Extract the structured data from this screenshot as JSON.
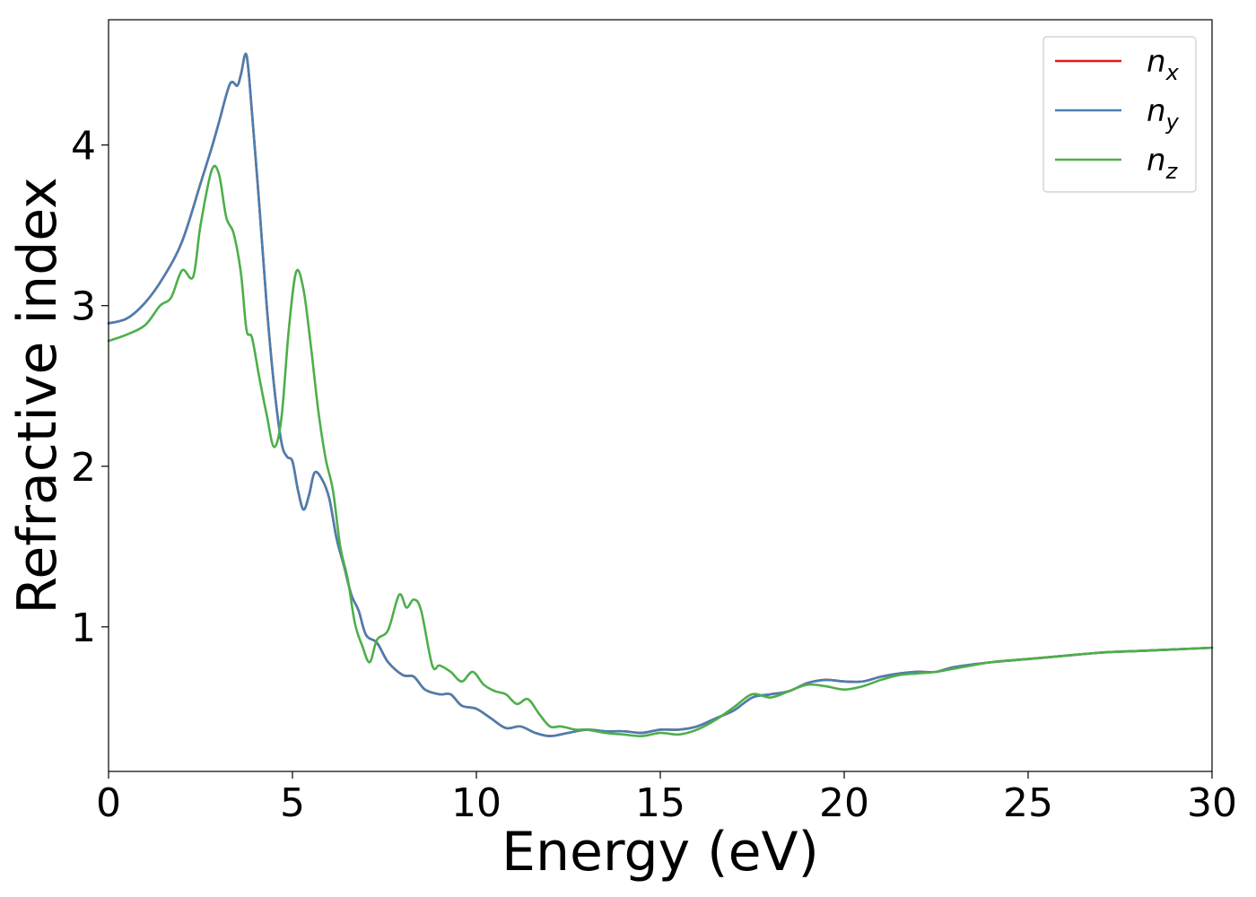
{
  "chart_data": {
    "type": "line",
    "title": "",
    "xlabel": "Energy (eV)",
    "ylabel": "Refractive index",
    "xlim": [
      0,
      30
    ],
    "ylim": [
      0.1,
      4.78
    ],
    "xticks": [
      0,
      5,
      10,
      15,
      20,
      25,
      30
    ],
    "xtick_labels": [
      "0",
      "5",
      "10",
      "15",
      "20",
      "25",
      "30"
    ],
    "yticks": [
      1,
      2,
      3,
      4
    ],
    "ytick_labels": [
      "1",
      "2",
      "3",
      "4"
    ],
    "grid": false,
    "legend_position": "top-right",
    "series": [
      {
        "name": "n_x",
        "label_main": "n",
        "label_sub": "x",
        "color": "#e41a1c",
        "x": [
          0,
          0.5,
          1.0,
          1.5,
          2.0,
          2.5,
          2.8,
          3.0,
          3.3,
          3.5,
          3.6,
          3.75,
          3.9,
          4.1,
          4.3,
          4.5,
          4.7,
          4.85,
          5.0,
          5.15,
          5.3,
          5.45,
          5.6,
          5.8,
          6.0,
          6.2,
          6.4,
          6.6,
          6.8,
          7.0,
          7.3,
          7.6,
          8.0,
          8.3,
          8.6,
          9.0,
          9.3,
          9.6,
          10.0,
          10.4,
          10.8,
          11.2,
          11.6,
          12.0,
          12.5,
          13.0,
          13.5,
          14.0,
          14.5,
          15.0,
          15.5,
          16.0,
          16.5,
          17.0,
          17.5,
          18.0,
          18.5,
          19.0,
          19.5,
          20.0,
          20.5,
          21.0,
          21.5,
          22.0,
          22.5,
          23.0,
          24.0,
          25.0,
          26.0,
          27.0,
          28.0,
          29.0,
          30.0
        ],
        "values": [
          2.89,
          2.92,
          3.02,
          3.18,
          3.4,
          3.76,
          3.98,
          4.14,
          4.38,
          4.37,
          4.44,
          4.56,
          4.2,
          3.62,
          3.0,
          2.5,
          2.15,
          2.06,
          2.03,
          1.85,
          1.73,
          1.82,
          1.96,
          1.92,
          1.8,
          1.55,
          1.38,
          1.2,
          1.1,
          0.95,
          0.9,
          0.78,
          0.7,
          0.69,
          0.61,
          0.58,
          0.58,
          0.51,
          0.49,
          0.43,
          0.37,
          0.38,
          0.34,
          0.32,
          0.34,
          0.36,
          0.35,
          0.35,
          0.34,
          0.36,
          0.36,
          0.38,
          0.43,
          0.48,
          0.56,
          0.58,
          0.6,
          0.65,
          0.67,
          0.66,
          0.66,
          0.69,
          0.71,
          0.72,
          0.72,
          0.75,
          0.78,
          0.8,
          0.82,
          0.84,
          0.85,
          0.86,
          0.87
        ]
      },
      {
        "name": "n_y",
        "label_main": "n",
        "label_sub": "y",
        "color": "#4a7fb0",
        "x": [
          0,
          0.5,
          1.0,
          1.5,
          2.0,
          2.5,
          2.8,
          3.0,
          3.3,
          3.5,
          3.6,
          3.75,
          3.9,
          4.1,
          4.3,
          4.5,
          4.7,
          4.85,
          5.0,
          5.15,
          5.3,
          5.45,
          5.6,
          5.8,
          6.0,
          6.2,
          6.4,
          6.6,
          6.8,
          7.0,
          7.3,
          7.6,
          8.0,
          8.3,
          8.6,
          9.0,
          9.3,
          9.6,
          10.0,
          10.4,
          10.8,
          11.2,
          11.6,
          12.0,
          12.5,
          13.0,
          13.5,
          14.0,
          14.5,
          15.0,
          15.5,
          16.0,
          16.5,
          17.0,
          17.5,
          18.0,
          18.5,
          19.0,
          19.5,
          20.0,
          20.5,
          21.0,
          21.5,
          22.0,
          22.5,
          23.0,
          24.0,
          25.0,
          26.0,
          27.0,
          28.0,
          29.0,
          30.0
        ],
        "values": [
          2.89,
          2.92,
          3.02,
          3.18,
          3.4,
          3.76,
          3.98,
          4.14,
          4.38,
          4.37,
          4.44,
          4.56,
          4.2,
          3.62,
          3.0,
          2.5,
          2.15,
          2.06,
          2.03,
          1.85,
          1.73,
          1.82,
          1.96,
          1.92,
          1.8,
          1.55,
          1.38,
          1.2,
          1.1,
          0.95,
          0.9,
          0.78,
          0.7,
          0.69,
          0.61,
          0.58,
          0.58,
          0.51,
          0.49,
          0.43,
          0.37,
          0.38,
          0.34,
          0.32,
          0.34,
          0.36,
          0.35,
          0.35,
          0.34,
          0.36,
          0.36,
          0.38,
          0.43,
          0.48,
          0.56,
          0.58,
          0.6,
          0.65,
          0.67,
          0.66,
          0.66,
          0.69,
          0.71,
          0.72,
          0.72,
          0.75,
          0.78,
          0.8,
          0.82,
          0.84,
          0.85,
          0.86,
          0.87
        ]
      },
      {
        "name": "n_z",
        "label_main": "n",
        "label_sub": "z",
        "color": "#4daf4a",
        "x": [
          0,
          0.5,
          1.0,
          1.4,
          1.7,
          2.0,
          2.3,
          2.5,
          2.8,
          3.0,
          3.2,
          3.4,
          3.6,
          3.75,
          3.9,
          4.1,
          4.3,
          4.5,
          4.7,
          4.9,
          5.1,
          5.3,
          5.5,
          5.7,
          5.9,
          6.1,
          6.3,
          6.5,
          6.7,
          6.9,
          7.1,
          7.3,
          7.6,
          7.9,
          8.1,
          8.3,
          8.5,
          8.8,
          9.0,
          9.3,
          9.6,
          9.9,
          10.2,
          10.5,
          10.8,
          11.1,
          11.4,
          11.7,
          12.0,
          12.3,
          12.7,
          13.0,
          13.5,
          14.0,
          14.5,
          15.0,
          15.5,
          16.0,
          16.5,
          17.0,
          17.5,
          18.0,
          18.5,
          19.0,
          19.5,
          20.0,
          20.5,
          21.0,
          21.5,
          22.0,
          22.5,
          23.0,
          24.0,
          25.0,
          26.0,
          27.0,
          28.0,
          29.0,
          30.0
        ],
        "values": [
          2.78,
          2.82,
          2.88,
          3.0,
          3.05,
          3.22,
          3.18,
          3.5,
          3.84,
          3.82,
          3.55,
          3.45,
          3.2,
          2.85,
          2.8,
          2.55,
          2.32,
          2.12,
          2.3,
          2.85,
          3.21,
          3.1,
          2.75,
          2.35,
          2.05,
          1.85,
          1.5,
          1.3,
          1.02,
          0.88,
          0.78,
          0.92,
          0.98,
          1.2,
          1.12,
          1.17,
          1.1,
          0.76,
          0.76,
          0.72,
          0.66,
          0.72,
          0.64,
          0.6,
          0.58,
          0.52,
          0.55,
          0.46,
          0.38,
          0.38,
          0.36,
          0.36,
          0.34,
          0.33,
          0.32,
          0.34,
          0.33,
          0.36,
          0.42,
          0.5,
          0.58,
          0.56,
          0.6,
          0.64,
          0.63,
          0.61,
          0.63,
          0.67,
          0.7,
          0.71,
          0.72,
          0.74,
          0.78,
          0.8,
          0.82,
          0.84,
          0.85,
          0.86,
          0.87
        ]
      }
    ]
  }
}
